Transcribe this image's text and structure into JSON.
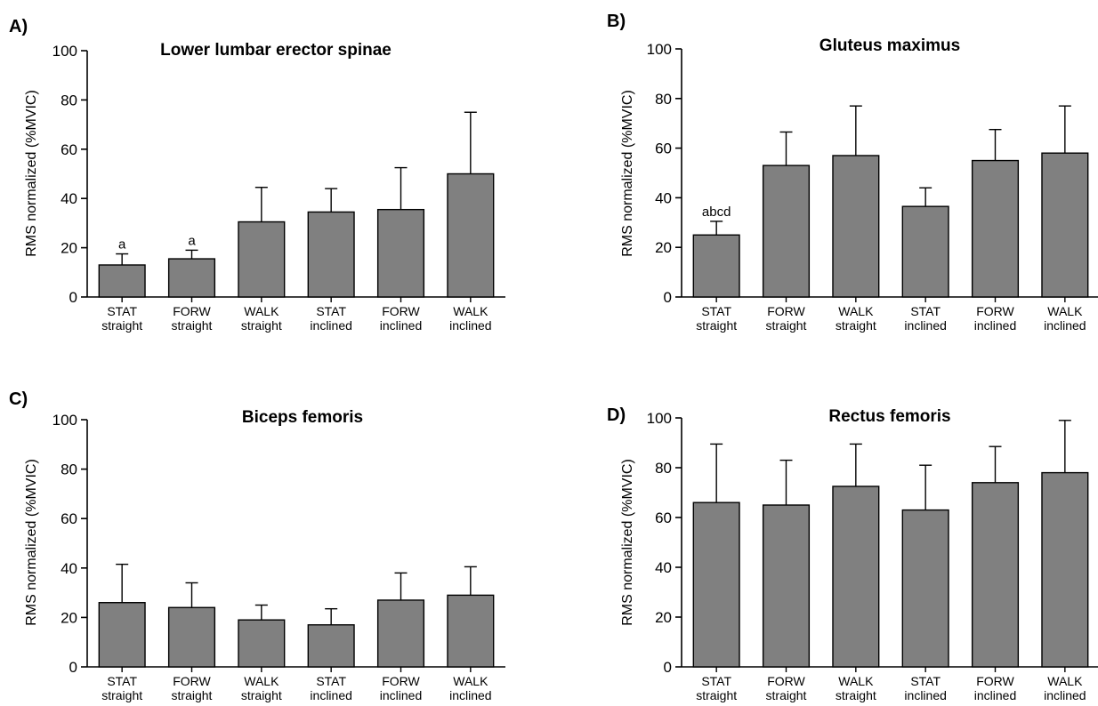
{
  "chart_data": [
    {
      "panel": "A)",
      "type": "bar",
      "title": "Lower lumbar erector spinae",
      "ylabel": "RMS normalized (%MVIC)",
      "ylim": [
        0,
        100
      ],
      "yticks": [
        "0",
        "20",
        "40",
        "60",
        "80",
        "100"
      ],
      "categories": [
        [
          "STAT",
          "straight"
        ],
        [
          "FORW",
          "straight"
        ],
        [
          "WALK",
          "straight"
        ],
        [
          "STAT",
          "inclined"
        ],
        [
          "FORW",
          "inclined"
        ],
        [
          "WALK",
          "inclined"
        ]
      ],
      "values": [
        13,
        15.5,
        30.5,
        34.5,
        35.5,
        50
      ],
      "errors": [
        4.5,
        3.5,
        14,
        9.5,
        17,
        25
      ],
      "annotations": [
        "a",
        "a",
        "",
        "",
        "",
        ""
      ],
      "bar_color": "#808080"
    },
    {
      "panel": "B)",
      "type": "bar",
      "title": "Gluteus maximus",
      "ylabel": "RMS normalized (%MVIC)",
      "ylim": [
        0,
        100
      ],
      "yticks": [
        "0",
        "20",
        "40",
        "60",
        "80",
        "100"
      ],
      "categories": [
        [
          "STAT",
          "straight"
        ],
        [
          "FORW",
          "straight"
        ],
        [
          "WALK",
          "straight"
        ],
        [
          "STAT",
          "inclined"
        ],
        [
          "FORW",
          "inclined"
        ],
        [
          "WALK",
          "inclined"
        ]
      ],
      "values": [
        25,
        53,
        57,
        36.5,
        55,
        58
      ],
      "errors": [
        5.5,
        13.5,
        20,
        7.5,
        12.5,
        19
      ],
      "annotations": [
        "abcd",
        "",
        "",
        "",
        "",
        ""
      ],
      "bar_color": "#808080"
    },
    {
      "panel": "C)",
      "type": "bar",
      "title": "Biceps femoris",
      "ylabel": "RMS normalized (%MVIC)",
      "ylim": [
        0,
        100
      ],
      "yticks": [
        "0",
        "20",
        "40",
        "60",
        "80",
        "100"
      ],
      "categories": [
        [
          "STAT",
          "straight"
        ],
        [
          "FORW",
          "straight"
        ],
        [
          "WALK",
          "straight"
        ],
        [
          "STAT",
          "inclined"
        ],
        [
          "FORW",
          "inclined"
        ],
        [
          "WALK",
          "inclined"
        ]
      ],
      "values": [
        26,
        24,
        19,
        17,
        27,
        29
      ],
      "errors": [
        15.5,
        10,
        6,
        6.5,
        11,
        11.5
      ],
      "annotations": [
        "",
        "",
        "",
        "",
        "",
        ""
      ],
      "bar_color": "#808080"
    },
    {
      "panel": "D)",
      "type": "bar",
      "title": "Rectus femoris",
      "ylabel": "RMS normalized (%MVIC)",
      "ylim": [
        0,
        100
      ],
      "yticks": [
        "0",
        "20",
        "40",
        "60",
        "80",
        "100"
      ],
      "categories": [
        [
          "STAT",
          "straight"
        ],
        [
          "FORW",
          "straight"
        ],
        [
          "WALK",
          "straight"
        ],
        [
          "STAT",
          "inclined"
        ],
        [
          "FORW",
          "inclined"
        ],
        [
          "WALK",
          "inclined"
        ]
      ],
      "values": [
        66,
        65,
        72.5,
        63,
        74,
        78
      ],
      "errors": [
        23.5,
        18,
        17,
        18,
        14.5,
        21
      ],
      "annotations": [
        "",
        "",
        "",
        "",
        "",
        ""
      ],
      "bar_color": "#808080"
    }
  ]
}
